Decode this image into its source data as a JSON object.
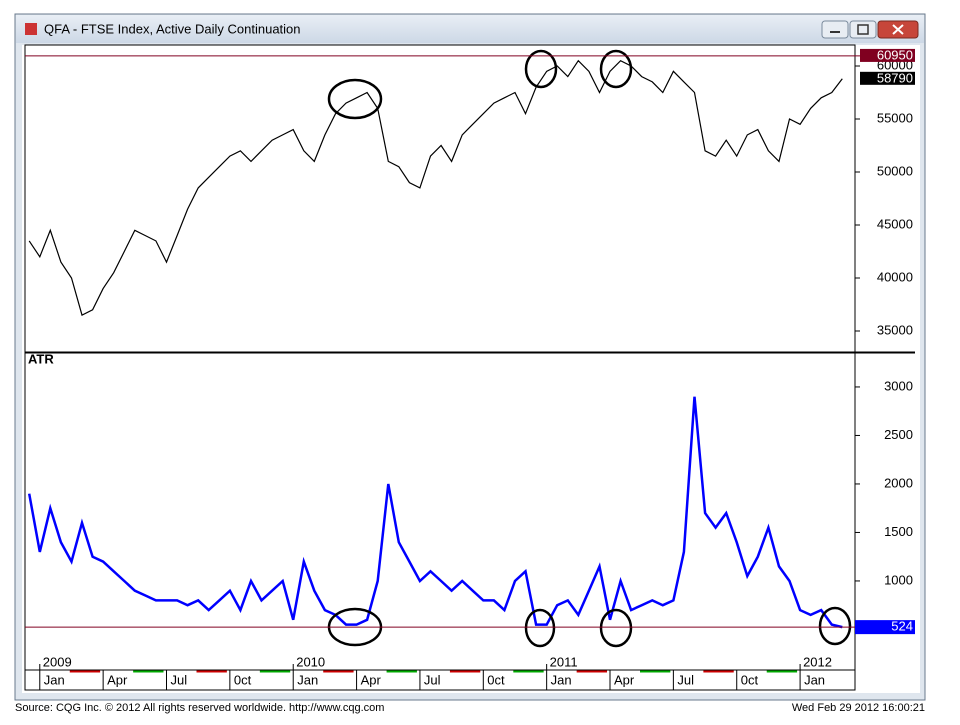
{
  "window": {
    "title": "QFA - FTSE Index, Active Daily Continuation"
  },
  "chart_data": [
    {
      "type": "line",
      "x": [
        -0.5,
        0,
        0.5,
        1,
        1.5,
        2,
        2.5,
        3,
        3.5,
        4,
        4.5,
        5,
        5.5,
        6,
        6.5,
        7,
        7.5,
        8,
        8.5,
        9,
        9.5,
        10,
        10.5,
        11,
        11.5,
        12,
        12.5,
        13,
        13.5,
        14,
        14.5,
        15,
        15.5,
        16,
        16.5,
        17,
        17.5,
        18,
        18.5,
        19,
        19.5,
        20,
        20.5,
        21,
        21.5,
        22,
        22.5,
        23,
        23.5,
        24,
        24.5,
        25,
        25.5,
        26,
        26.5,
        27,
        27.5,
        28,
        28.5,
        29,
        29.5,
        30,
        30.5,
        31,
        31.5,
        32,
        32.5,
        33,
        33.5,
        34,
        34.5,
        35,
        35.5,
        36,
        36.5,
        37,
        37.5,
        38
      ],
      "series": [
        {
          "color": "#000000",
          "values": [
            43500,
            42000,
            44500,
            41500,
            40000,
            36500,
            37000,
            39000,
            40500,
            42500,
            44500,
            44000,
            43500,
            41500,
            44000,
            46500,
            48500,
            49500,
            50500,
            51500,
            52000,
            51000,
            52000,
            53000,
            53500,
            54000,
            52000,
            51000,
            53500,
            55500,
            56500,
            57000,
            57500,
            56000,
            51000,
            50500,
            49000,
            48500,
            51500,
            52500,
            51000,
            53500,
            54500,
            55500,
            56500,
            57000,
            57500,
            55500,
            58000,
            59500,
            60000,
            59000,
            60500,
            59500,
            57500,
            59500,
            60500,
            60000,
            59000,
            58500,
            57500,
            59500,
            58500,
            57500,
            52000,
            51500,
            53000,
            51500,
            53500,
            54000,
            52000,
            51000,
            55000,
            54500,
            56000,
            57000,
            57500,
            58790
          ]
        }
      ],
      "xlim": [
        -0.7,
        38.6
      ],
      "ylim": [
        33020,
        61980
      ],
      "yticks": [
        35000,
        40000,
        45000,
        50000,
        55000,
        60000
      ],
      "reference_line": {
        "value": 60950,
        "color": "#800020"
      }
    },
    {
      "type": "line",
      "title": "ATR",
      "x": [
        -0.5,
        0,
        0.5,
        1,
        1.5,
        2,
        2.5,
        3,
        3.5,
        4,
        4.5,
        5,
        5.5,
        6,
        6.5,
        7,
        7.5,
        8,
        8.5,
        9,
        9.5,
        10,
        10.5,
        11,
        11.5,
        12,
        12.5,
        13,
        13.5,
        14,
        14.5,
        15,
        15.5,
        16,
        16.5,
        17,
        17.5,
        18,
        18.5,
        19,
        19.5,
        20,
        20.5,
        21,
        21.5,
        22,
        22.5,
        23,
        23.5,
        24,
        24.5,
        25,
        25.5,
        26,
        26.5,
        27,
        27.5,
        28,
        28.5,
        29,
        29.5,
        30,
        30.5,
        31,
        31.5,
        32,
        32.5,
        33,
        33.5,
        34,
        34.5,
        35,
        35.5,
        36,
        36.5,
        37,
        37.5,
        38
      ],
      "series": [
        {
          "color": "#0000ff",
          "values": [
            1900,
            1300,
            1750,
            1400,
            1200,
            1600,
            1250,
            1200,
            1100,
            1000,
            900,
            850,
            800,
            800,
            800,
            750,
            800,
            700,
            800,
            900,
            700,
            1000,
            800,
            900,
            1000,
            600,
            1200,
            900,
            700,
            650,
            550,
            550,
            600,
            1000,
            2000,
            1400,
            1200,
            1000,
            1100,
            1000,
            900,
            1000,
            900,
            800,
            800,
            700,
            1000,
            1100,
            550,
            550,
            750,
            800,
            650,
            900,
            1150,
            600,
            1000,
            700,
            750,
            800,
            750,
            800,
            1300,
            2900,
            1700,
            1550,
            1700,
            1400,
            1050,
            1250,
            1550,
            1150,
            1000,
            700,
            650,
            700,
            550,
            524
          ]
        }
      ],
      "xlim": [
        -0.7,
        38.6
      ],
      "ylim": [
        82,
        3350
      ],
      "yticks": [
        1000,
        1500,
        2000,
        2500,
        3000
      ],
      "reference_line": {
        "value": 524,
        "color": "#800020"
      },
      "xticks": [
        {
          "value": 0,
          "label": "Jan"
        },
        {
          "value": 3,
          "label": "Apr"
        },
        {
          "value": 6,
          "label": "Jul"
        },
        {
          "value": 9,
          "label": "0ct"
        },
        {
          "value": 12,
          "label": "Jan"
        },
        {
          "value": 15,
          "label": "Apr"
        },
        {
          "value": 18,
          "label": "Jul"
        },
        {
          "value": 21,
          "label": "0ct"
        },
        {
          "value": 24,
          "label": "Jan"
        },
        {
          "value": 27,
          "label": "Apr"
        },
        {
          "value": 30,
          "label": "Jul"
        },
        {
          "value": 33,
          "label": "0ct"
        },
        {
          "value": 36,
          "label": "Jan"
        }
      ],
      "year_labels": [
        {
          "value": 0,
          "label": "2009"
        },
        {
          "value": 12,
          "label": "2010"
        },
        {
          "value": 24,
          "label": "2011"
        },
        {
          "value": 36,
          "label": "2012"
        }
      ]
    }
  ],
  "footer": {
    "source": "Source: CQG Inc. © 2012 All rights reserved worldwide. http://www.cqg.com",
    "timestamp": "Wed Feb 29 2012 16:00:21"
  }
}
